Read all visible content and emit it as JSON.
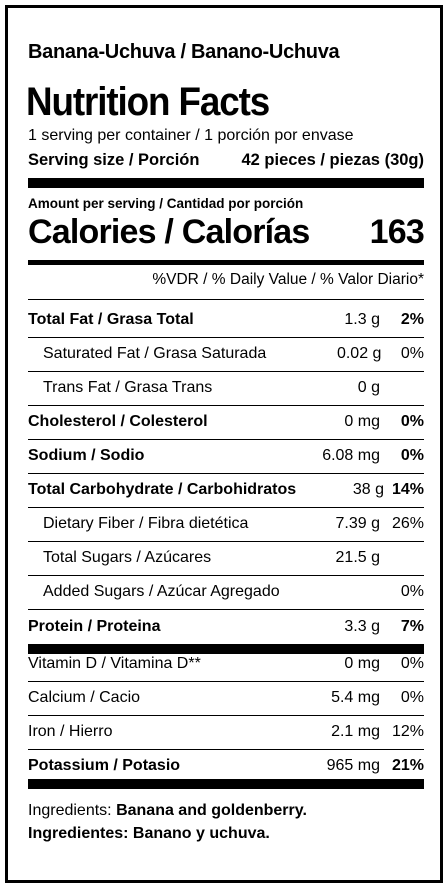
{
  "product_name": "Banana-Uchuva / Banano-Uchuva",
  "title": "Nutrition Facts",
  "servings_per_container": "1 serving per container / 1 porción por envase",
  "serving_size_label": "Serving size / Porción",
  "serving_size_value": "42 pieces / piezas (30g)",
  "amount_per_serving": "Amount per serving / Cantidad por porción",
  "calories_label": "Calories / Calorías",
  "calories_value": "163",
  "dv_header": "%VDR / % Daily Value / % Valor Diario*",
  "nutrients": [
    {
      "name": "Total Fat / Grasa Total",
      "amount": "1.3 g",
      "dv": "2%"
    },
    {
      "name": "Saturated Fat / Grasa Saturada",
      "amount": "0.02 g",
      "dv": "0%"
    },
    {
      "name": "Trans Fat / Grasa Trans",
      "amount": "0 g",
      "dv": ""
    },
    {
      "name": "Cholesterol / Colesterol",
      "amount": "0 mg",
      "dv": "0%"
    },
    {
      "name": "Sodium / Sodio",
      "amount": "6.08 mg",
      "dv": "0%"
    },
    {
      "name": "Total Carbohydrate / Carbohidratos",
      "amount": "38 g",
      "dv": "14%"
    },
    {
      "name": "Dietary Fiber / Fibra dietética",
      "amount": "7.39 g",
      "dv": "26%"
    },
    {
      "name": "Total Sugars / Azúcares",
      "amount": "21.5 g",
      "dv": ""
    },
    {
      "name": "Added Sugars / Azúcar Agregado",
      "amount": "",
      "dv": "0%"
    },
    {
      "name": "Protein / Proteina",
      "amount": "3.3 g",
      "dv": "7%"
    }
  ],
  "vitamins": [
    {
      "name": "Vitamin D / Vitamina D**",
      "amount": "0 mg",
      "dv": "0%"
    },
    {
      "name": "Calcium / Cacio",
      "amount": "5.4 mg",
      "dv": "0%"
    },
    {
      "name": "Iron / Hierro",
      "amount": "2.1 mg",
      "dv": "12%"
    },
    {
      "name": "Potassium / Potasio",
      "amount": "965 mg",
      "dv": "21%"
    }
  ],
  "ingredients_label_en": "Ingredients:",
  "ingredients_en": "Banana and goldenberry.",
  "ingredients_es": "Ingredientes: Banano y uchuva."
}
